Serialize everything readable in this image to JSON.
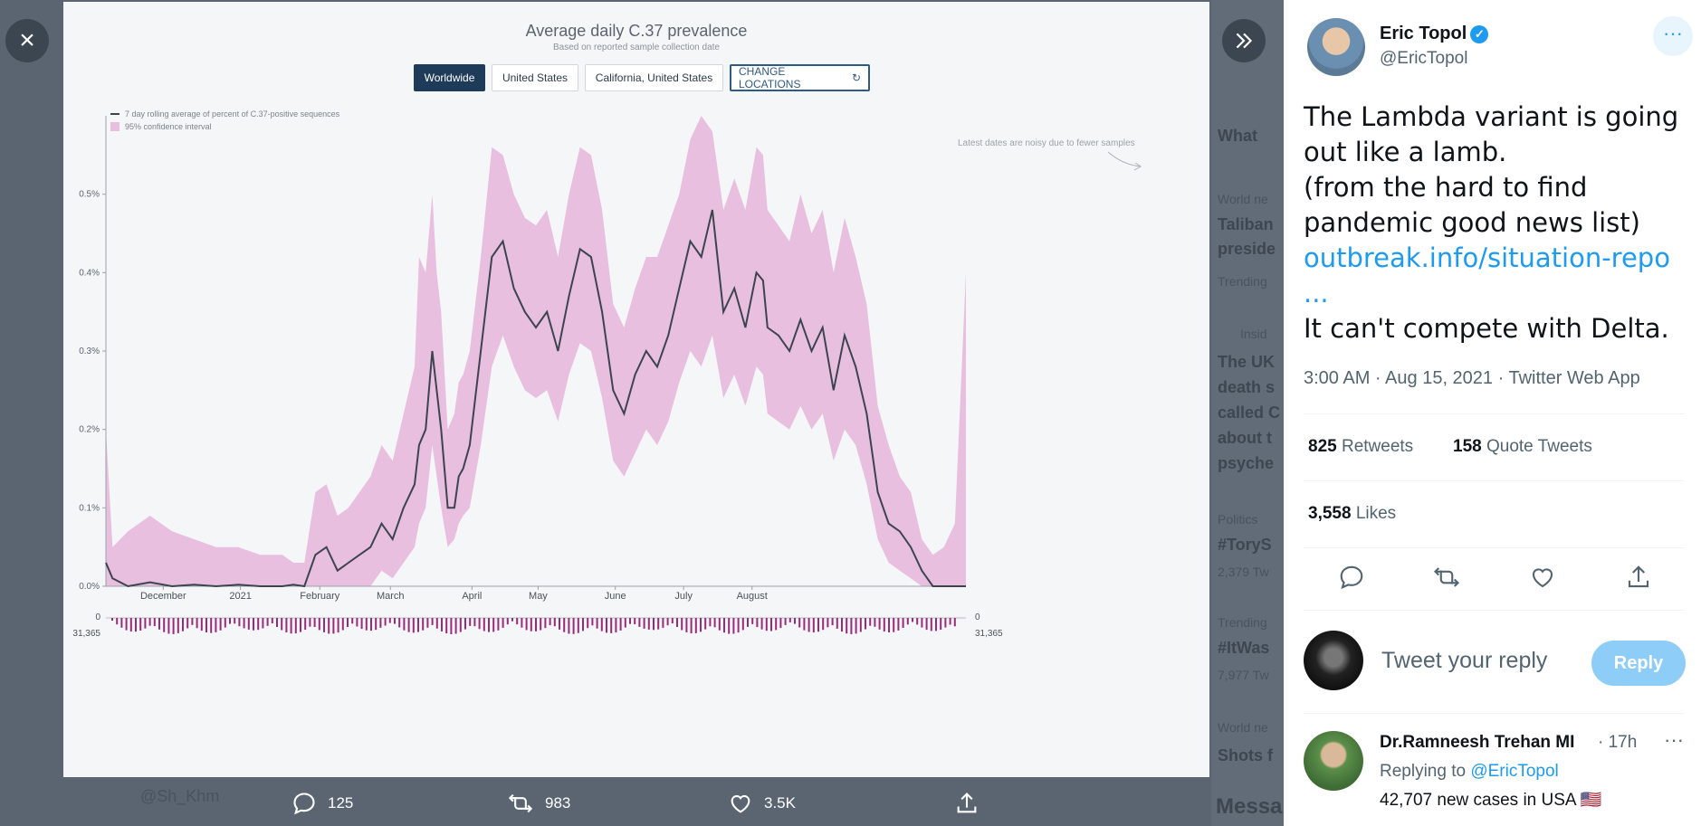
{
  "viewer": {
    "close_label": "×",
    "background_fragments": [
      "What",
      "World ne",
      "Taliban",
      "preside",
      "Trending",
      "Insid",
      "The UK",
      "death s",
      "called C",
      "about t",
      "psyche",
      "Politics",
      "#ToryS",
      "2,379 Tw",
      "Trending",
      "#ItWas",
      "7,977 Tw",
      "World ne",
      "Shots f",
      "Messa",
      "@Sh_Khm"
    ]
  },
  "media_actions": {
    "replies": "125",
    "retweets": "983",
    "likes": "3.5K"
  },
  "chart_image": {
    "buttons": [
      "Worldwide",
      "United States",
      "California, United States",
      "CHANGE LOCATIONS"
    ],
    "active_button": "Worldwide",
    "note": "Latest dates are noisy due to fewer samples",
    "bottom_axis": {
      "left_top": "0",
      "left_bottom": "31,365",
      "right_top": "0",
      "right_bottom": "31,365"
    }
  },
  "chart_data": {
    "type": "line",
    "title": "Average daily C.37 prevalence",
    "subtitle": "Based on reported sample collection date",
    "legend": [
      "7 day rolling average of percent of C.37-positive sequences",
      "95% confidence interval"
    ],
    "x_tick_labels": [
      "December",
      "2021",
      "February",
      "March",
      "April",
      "May",
      "June",
      "July",
      "August"
    ],
    "y_tick_labels": [
      "0.0%",
      "0.1%",
      "0.2%",
      "0.3%",
      "0.4%",
      "0.5%"
    ],
    "ylim": [
      0,
      0.6
    ],
    "colors": {
      "line": "#3c4450",
      "band": "#e9bfe0",
      "counts": "#9a2a7a"
    },
    "series": [
      {
        "name": "7 day rolling average of percent of C.37-positive sequences",
        "x_day": [
          0,
          3,
          10,
          20,
          30,
          40,
          50,
          60,
          70,
          80,
          85,
          90,
          95,
          100,
          105,
          110,
          115,
          120,
          125,
          130,
          135,
          140,
          142,
          145,
          148,
          150,
          152,
          155,
          158,
          160,
          162,
          165,
          170,
          175,
          180,
          185,
          190,
          195,
          200,
          205,
          210,
          215,
          220,
          225,
          230,
          235,
          240,
          245,
          250,
          255,
          260,
          265,
          270,
          275,
          280,
          285,
          290,
          295,
          298,
          300,
          305,
          310,
          315,
          320,
          325,
          330,
          335,
          340,
          345,
          350,
          355,
          360,
          365,
          370,
          375,
          380,
          385,
          390
        ],
        "values": [
          0.03,
          0.01,
          0.0,
          0.005,
          0.0,
          0.002,
          0.0,
          0.002,
          0.0,
          0.0,
          0.002,
          0.0,
          0.04,
          0.05,
          0.02,
          0.03,
          0.04,
          0.05,
          0.08,
          0.06,
          0.1,
          0.13,
          0.18,
          0.2,
          0.3,
          0.25,
          0.2,
          0.1,
          0.1,
          0.14,
          0.15,
          0.18,
          0.3,
          0.42,
          0.44,
          0.38,
          0.35,
          0.33,
          0.35,
          0.3,
          0.37,
          0.43,
          0.42,
          0.35,
          0.25,
          0.22,
          0.27,
          0.3,
          0.28,
          0.32,
          0.38,
          0.44,
          0.42,
          0.48,
          0.35,
          0.38,
          0.33,
          0.4,
          0.39,
          0.33,
          0.32,
          0.3,
          0.34,
          0.3,
          0.33,
          0.25,
          0.32,
          0.28,
          0.22,
          0.12,
          0.08,
          0.07,
          0.05,
          0.02,
          0.0,
          0.0,
          0.0,
          0.0
        ]
      }
    ],
    "band_upper": [
      0.2,
      0.05,
      0.07,
      0.09,
      0.07,
      0.06,
      0.05,
      0.05,
      0.04,
      0.04,
      0.03,
      0.03,
      0.12,
      0.13,
      0.09,
      0.1,
      0.12,
      0.14,
      0.18,
      0.16,
      0.22,
      0.28,
      0.42,
      0.4,
      0.5,
      0.4,
      0.35,
      0.2,
      0.22,
      0.26,
      0.27,
      0.3,
      0.42,
      0.56,
      0.55,
      0.5,
      0.47,
      0.46,
      0.48,
      0.42,
      0.5,
      0.56,
      0.55,
      0.48,
      0.36,
      0.33,
      0.38,
      0.42,
      0.42,
      0.46,
      0.5,
      0.57,
      0.6,
      0.58,
      0.48,
      0.52,
      0.48,
      0.56,
      0.55,
      0.48,
      0.46,
      0.44,
      0.5,
      0.45,
      0.48,
      0.4,
      0.47,
      0.42,
      0.36,
      0.23,
      0.18,
      0.14,
      0.12,
      0.06,
      0.04,
      0.05,
      0.08,
      0.4
    ],
    "band_lower": [
      0.0,
      0.0,
      0.0,
      0.0,
      0.0,
      0.0,
      0.0,
      0.0,
      0.0,
      0.0,
      0.0,
      0.0,
      0.0,
      0.0,
      0.0,
      0.0,
      0.0,
      0.0,
      0.02,
      0.01,
      0.03,
      0.05,
      0.08,
      0.1,
      0.18,
      0.14,
      0.1,
      0.05,
      0.06,
      0.08,
      0.09,
      0.1,
      0.18,
      0.28,
      0.32,
      0.28,
      0.25,
      0.24,
      0.25,
      0.21,
      0.27,
      0.31,
      0.3,
      0.24,
      0.16,
      0.14,
      0.17,
      0.2,
      0.18,
      0.21,
      0.26,
      0.3,
      0.28,
      0.32,
      0.24,
      0.27,
      0.23,
      0.28,
      0.27,
      0.22,
      0.21,
      0.2,
      0.23,
      0.2,
      0.22,
      0.16,
      0.2,
      0.18,
      0.13,
      0.06,
      0.03,
      0.02,
      0.01,
      0.0,
      0.0,
      0.0,
      0.0,
      0.0
    ]
  },
  "tweet": {
    "author_name": "Eric Topol",
    "author_handle": "@EricTopol",
    "more_label": "···",
    "text_lines": [
      "The Lambda variant is going",
      "out like a lamb.",
      "(from the hard to find",
      "pandemic good news list)"
    ],
    "link_text": "outbreak.info/situation-repo",
    "link_ellipsis": "...",
    "text_after": "It can't compete with Delta.",
    "meta": "3:00 AM · Aug 15, 2021 · Twitter Web App",
    "retweets_count": "825",
    "retweets_label": "Retweets",
    "quotes_count": "158",
    "quotes_label": "Quote Tweets",
    "likes_count": "3,558",
    "likes_label": "Likes",
    "reply_placeholder": "Tweet your reply",
    "reply_button": "Reply"
  },
  "reply": {
    "name": "Dr.Ramneesh Trehan MI",
    "time": "· 17h",
    "more": "···",
    "replying_prefix": "Replying to",
    "replying_handle": "@EricTopol",
    "text": "42,707 new cases in USA 🇺🇸"
  }
}
